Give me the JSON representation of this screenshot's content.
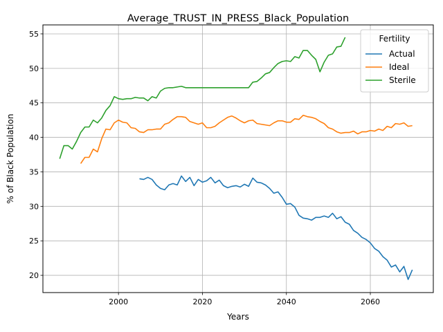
{
  "chart_data": {
    "type": "line",
    "title": "Average_TRUST_IN_PRESS_Black_Population",
    "xlabel": "Years",
    "ylabel": "% of Black Population",
    "xlim": [
      1982,
      2075
    ],
    "ylim": [
      17.5,
      56.3
    ],
    "x_ticks": [
      2000,
      2020,
      2040,
      2060
    ],
    "y_ticks": [
      20,
      25,
      30,
      35,
      40,
      45,
      50,
      55
    ],
    "grid": true,
    "legend": {
      "title": "Fertility",
      "position": "top-right"
    },
    "series": [
      {
        "name": "Actual",
        "color": "#1f77b4",
        "x": [
          2005,
          2006,
          2007,
          2008,
          2009,
          2010,
          2011,
          2012,
          2013,
          2014,
          2015,
          2016,
          2017,
          2018,
          2019,
          2020,
          2021,
          2022,
          2023,
          2024,
          2025,
          2026,
          2027,
          2028,
          2029,
          2030,
          2031,
          2032,
          2033,
          2034,
          2035,
          2036,
          2037,
          2038,
          2039,
          2040,
          2041,
          2042,
          2043,
          2044,
          2045,
          2046,
          2047,
          2048,
          2049,
          2050,
          2051,
          2052,
          2053,
          2054,
          2055,
          2056,
          2057,
          2058,
          2059,
          2060,
          2061,
          2062,
          2063,
          2064,
          2065,
          2066,
          2067,
          2068,
          2069,
          2070
        ],
        "values": [
          34.0,
          33.9,
          34.2,
          33.9,
          33.1,
          32.6,
          32.4,
          33.1,
          33.3,
          33.1,
          34.4,
          33.6,
          34.2,
          33.0,
          33.9,
          33.5,
          33.7,
          34.2,
          33.4,
          33.8,
          33.0,
          32.7,
          32.9,
          33.0,
          32.8,
          33.2,
          32.9,
          34.1,
          33.5,
          33.4,
          33.1,
          32.6,
          31.9,
          32.1,
          31.3,
          30.3,
          30.4,
          29.9,
          28.7,
          28.3,
          28.2,
          28.0,
          28.4,
          28.4,
          28.6,
          28.4,
          29.0,
          28.2,
          28.5,
          27.7,
          27.4,
          26.5,
          26.1,
          25.5,
          25.2,
          24.7,
          23.9,
          23.5,
          22.7,
          22.2,
          21.2,
          21.5,
          20.5,
          21.3,
          19.4,
          20.8
        ]
      },
      {
        "name": "Ideal",
        "color": "#ff7f0e",
        "x": [
          1991,
          1992,
          1993,
          1994,
          1995,
          1996,
          1997,
          1998,
          1999,
          2000,
          2001,
          2002,
          2003,
          2004,
          2005,
          2006,
          2007,
          2008,
          2009,
          2010,
          2011,
          2012,
          2013,
          2014,
          2015,
          2016,
          2017,
          2018,
          2019,
          2020,
          2021,
          2022,
          2023,
          2024,
          2025,
          2026,
          2027,
          2028,
          2029,
          2030,
          2031,
          2032,
          2033,
          2034,
          2035,
          2036,
          2037,
          2038,
          2039,
          2040,
          2041,
          2042,
          2043,
          2044,
          2045,
          2046,
          2047,
          2048,
          2049,
          2050,
          2051,
          2052,
          2053,
          2054,
          2055,
          2056,
          2057,
          2058,
          2059,
          2060,
          2061,
          2062,
          2063,
          2064,
          2065,
          2066,
          2067,
          2068,
          2069,
          2070
        ],
        "values": [
          36.2,
          37.1,
          37.1,
          38.3,
          37.9,
          39.8,
          41.2,
          41.1,
          42.1,
          42.5,
          42.2,
          42.1,
          41.4,
          41.3,
          40.8,
          40.7,
          41.1,
          41.1,
          41.2,
          41.2,
          41.9,
          42.1,
          42.6,
          43.0,
          43.0,
          42.9,
          42.3,
          42.1,
          41.9,
          42.1,
          41.4,
          41.4,
          41.6,
          42.1,
          42.5,
          42.9,
          43.1,
          42.8,
          42.4,
          42.1,
          42.4,
          42.5,
          42.0,
          41.9,
          41.8,
          41.7,
          42.1,
          42.4,
          42.4,
          42.2,
          42.2,
          42.7,
          42.6,
          43.2,
          43.0,
          42.9,
          42.7,
          42.3,
          42.0,
          41.4,
          41.2,
          40.8,
          40.6,
          40.7,
          40.7,
          40.9,
          40.5,
          40.8,
          40.8,
          41.0,
          40.9,
          41.2,
          41.0,
          41.6,
          41.4,
          42.0,
          41.9,
          42.1,
          41.6,
          41.7
        ]
      },
      {
        "name": "Sterile",
        "color": "#2ca02c",
        "x": [
          1986,
          1987,
          1988,
          1989,
          1990,
          1991,
          1992,
          1993,
          1994,
          1995,
          1996,
          1997,
          1998,
          1999,
          2000,
          2001,
          2002,
          2003,
          2004,
          2005,
          2006,
          2007,
          2008,
          2009,
          2010,
          2011,
          2012,
          2013,
          2014,
          2015,
          2016,
          2017,
          2018,
          2019,
          2020,
          2021,
          2022,
          2023,
          2024,
          2025,
          2026,
          2027,
          2028,
          2029,
          2030,
          2031,
          2032,
          2033,
          2034,
          2035,
          2036,
          2037,
          2038,
          2039,
          2040,
          2041,
          2042,
          2043,
          2044,
          2045,
          2046,
          2047,
          2048,
          2049,
          2050,
          2051,
          2052,
          2053,
          2054
        ],
        "values": [
          36.9,
          38.8,
          38.8,
          38.3,
          39.4,
          40.7,
          41.5,
          41.5,
          42.5,
          42.1,
          42.8,
          43.9,
          44.6,
          45.9,
          45.6,
          45.5,
          45.6,
          45.6,
          45.8,
          45.7,
          45.7,
          45.3,
          45.9,
          45.7,
          46.7,
          47.1,
          47.2,
          47.2,
          47.3,
          47.4,
          47.2,
          47.2,
          47.2,
          47.2,
          47.2,
          47.2,
          47.2,
          47.2,
          47.2,
          47.2,
          47.2,
          47.2,
          47.2,
          47.2,
          47.2,
          47.2,
          48.0,
          48.1,
          48.6,
          49.2,
          49.4,
          50.1,
          50.7,
          51.0,
          51.1,
          51.0,
          51.7,
          51.5,
          52.6,
          52.6,
          51.9,
          51.3,
          49.5,
          50.9,
          51.9,
          52.1,
          53.1,
          53.2,
          54.5
        ]
      }
    ]
  }
}
